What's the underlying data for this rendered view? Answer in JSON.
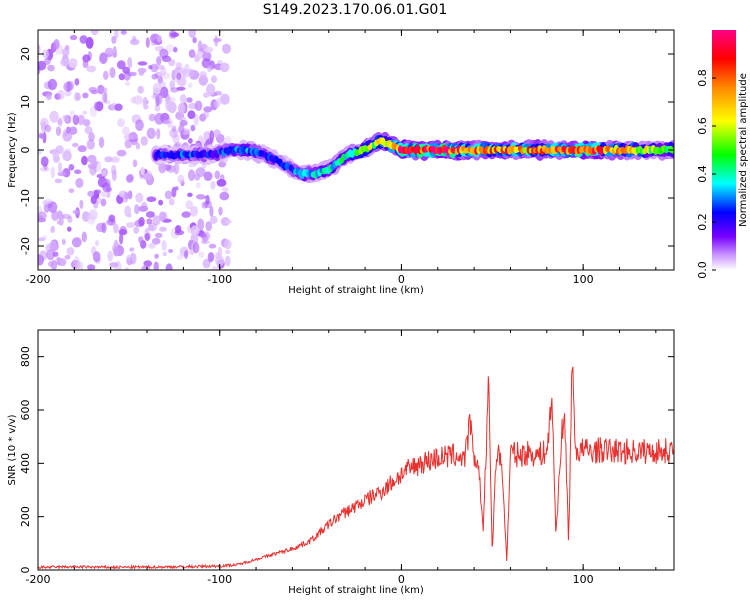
{
  "chart_data": [
    {
      "type": "heatmap",
      "title": "S149.2023.170.06.01.G01",
      "xlabel": "Height of straight line (km)",
      "ylabel": "Frequency (Hz)",
      "xlim": [
        -200,
        150
      ],
      "ylim": [
        -25,
        25
      ],
      "x_ticks": [
        "-200",
        "-100",
        "0",
        "100"
      ],
      "y_ticks": [
        "-20",
        "-10",
        "0",
        "10",
        "20"
      ],
      "colorbar": {
        "label": "Normalized spectral amplitude",
        "range": [
          0,
          1
        ],
        "ticks": [
          "0.0",
          "0.2",
          "0.4",
          "0.6",
          "0.8"
        ],
        "colormap": [
          "#ffffff",
          "#cc99ff",
          "#7700ff",
          "#0000ff",
          "#00ffff",
          "#00ff00",
          "#ffff00",
          "#ff8800",
          "#ff0000",
          "#ff0088"
        ]
      },
      "noise_region_x": [
        -200,
        -95
      ],
      "ridge": [
        {
          "x": -135,
          "y": -1
        },
        {
          "x": -120,
          "y": -1
        },
        {
          "x": -105,
          "y": -1
        },
        {
          "x": -95,
          "y": 0
        },
        {
          "x": -85,
          "y": 0
        },
        {
          "x": -75,
          "y": -1
        },
        {
          "x": -65,
          "y": -3
        },
        {
          "x": -55,
          "y": -5
        },
        {
          "x": -48,
          "y": -5
        },
        {
          "x": -40,
          "y": -4
        },
        {
          "x": -30,
          "y": -1
        },
        {
          "x": -20,
          "y": 0
        },
        {
          "x": -12,
          "y": 2
        },
        {
          "x": -5,
          "y": 1
        },
        {
          "x": 0,
          "y": 0
        },
        {
          "x": 20,
          "y": 0
        },
        {
          "x": 40,
          "y": 0
        },
        {
          "x": 60,
          "y": 0
        },
        {
          "x": 80,
          "y": 0
        },
        {
          "x": 100,
          "y": 0
        },
        {
          "x": 120,
          "y": 0
        },
        {
          "x": 150,
          "y": 0
        }
      ],
      "ridge_amplitude": [
        0.3,
        0.35,
        0.3,
        0.35,
        0.4,
        0.35,
        0.3,
        0.4,
        0.45,
        0.45,
        0.5,
        0.6,
        0.65,
        0.7,
        0.85,
        0.9,
        0.8,
        0.75,
        0.75,
        0.9,
        0.7,
        0.5
      ]
    },
    {
      "type": "line",
      "xlabel": "Height of straight line (km)",
      "ylabel": "SNR (10 * v/v)",
      "xlim": [
        -200,
        150
      ],
      "ylim": [
        0,
        900
      ],
      "x_ticks": [
        "-200",
        "-100",
        "0",
        "100"
      ],
      "y_ticks": [
        "0",
        "200",
        "400",
        "600",
        "800"
      ],
      "color": "#e8302e",
      "series": [
        {
          "x": [
            -200,
            -180,
            -160,
            -140,
            -120,
            -100,
            -90,
            -80,
            -70,
            -60,
            -50,
            -45,
            -40,
            -35,
            -30,
            -25,
            -20,
            -15,
            -10,
            -5,
            0,
            5,
            10,
            15,
            20,
            25,
            30,
            35,
            38,
            40,
            42,
            45,
            48,
            50,
            52,
            55,
            58,
            60,
            65,
            70,
            75,
            80,
            83,
            85,
            88,
            90,
            92,
            94,
            96,
            100,
            105,
            110,
            120,
            130,
            140,
            150
          ],
          "y": [
            10,
            12,
            10,
            11,
            12,
            15,
            20,
            40,
            60,
            80,
            110,
            140,
            170,
            200,
            220,
            240,
            260,
            280,
            300,
            330,
            360,
            380,
            400,
            410,
            420,
            425,
            430,
            420,
            560,
            380,
            430,
            150,
            700,
            60,
            420,
            430,
            30,
            440,
            430,
            440,
            430,
            445,
            640,
            120,
            500,
            560,
            100,
            780,
            440,
            450,
            445,
            450,
            445,
            445,
            445,
            450
          ]
        }
      ]
    }
  ]
}
